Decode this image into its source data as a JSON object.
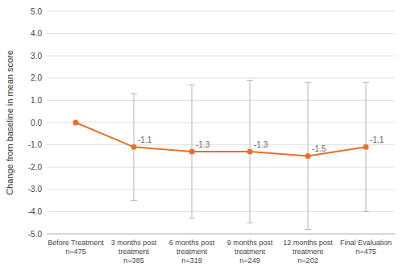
{
  "chart_data": {
    "type": "line",
    "ylabel": "Change from baseline in mean score",
    "categories": [
      "Before Treatment\nn=475",
      "3 months post\ntreatment\nn=385",
      "6 months post\ntreatment\nn=319",
      "9 months post\ntreatment\nn=249",
      "12 months post\ntreatment\nn=202",
      "Final Evaluation\nn=475"
    ],
    "values": [
      0.0,
      -1.1,
      -1.3,
      -1.3,
      -1.5,
      -1.1
    ],
    "errors": [
      0.0,
      2.4,
      3.0,
      3.2,
      3.3,
      2.9
    ],
    "annotations": [
      null,
      "-1.1",
      "-1.3",
      "-1.3",
      "-1.5",
      "-1.1"
    ],
    "color": "#E8702A",
    "marker": "circle",
    "ylim": [
      -5.0,
      5.0
    ],
    "yticks": [
      {
        "value": -5.0,
        "label": "-5.0"
      },
      {
        "value": -4.0,
        "label": "-4.0"
      },
      {
        "value": -3.0,
        "label": "-3.0"
      },
      {
        "value": -2.0,
        "label": "-2.0"
      },
      {
        "value": -1.0,
        "label": "-1.0"
      },
      {
        "value": 0.0,
        "label": "0.0"
      },
      {
        "value": 1.0,
        "label": "1.0"
      },
      {
        "value": 2.0,
        "label": "2.0"
      },
      {
        "value": 3.0,
        "label": "3.0"
      },
      {
        "value": 4.0,
        "label": "4.0"
      },
      {
        "value": 5.0,
        "label": "5.0"
      }
    ],
    "grid": true
  }
}
